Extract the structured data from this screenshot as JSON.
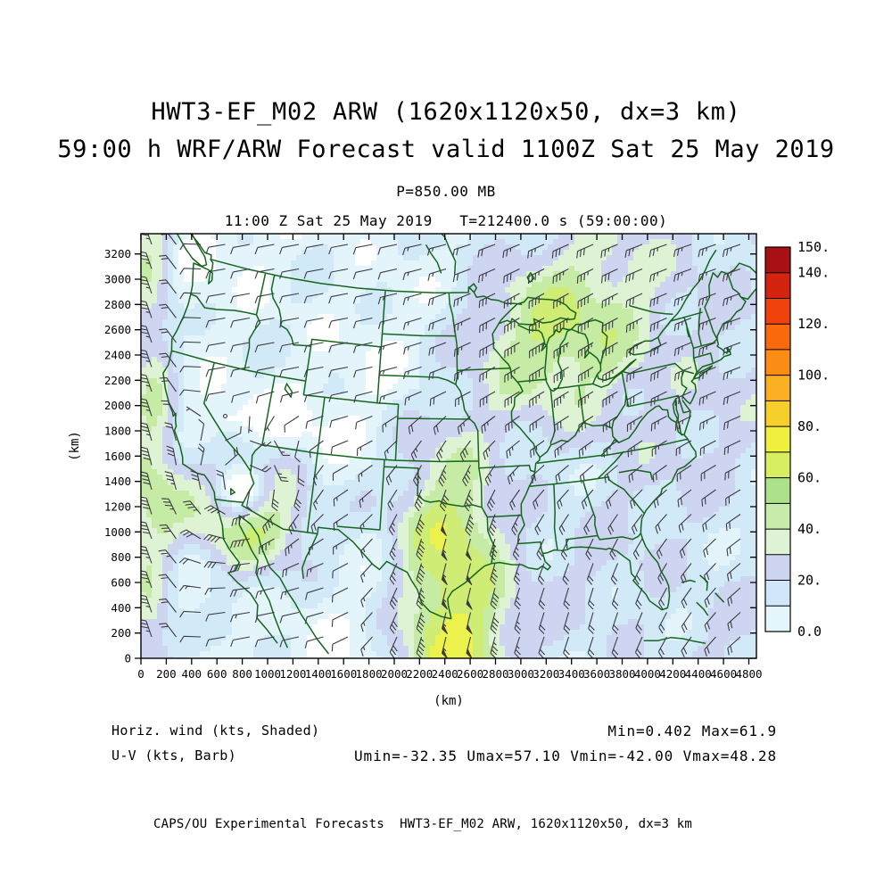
{
  "titles": {
    "line1": "HWT3-EF_M02 ARW (1620x1120x50, dx=3 km)",
    "line2": "59:00 h WRF/ARW Forecast valid 1100Z Sat 25 May 2019",
    "pressure": "P=850.00 MB",
    "valid": "11:00 Z Sat 25 May 2019   T=212400.0 s (59:00:00)"
  },
  "axes": {
    "x_label": "(km)",
    "y_label": "(km)",
    "x_ticks": [
      0,
      200,
      400,
      600,
      800,
      1000,
      1200,
      1400,
      1600,
      1800,
      2000,
      2200,
      2400,
      2600,
      2800,
      3000,
      3200,
      3400,
      3600,
      3800,
      4000,
      4200,
      4400,
      4600,
      4800
    ],
    "y_ticks": [
      0,
      200,
      400,
      600,
      800,
      1000,
      1200,
      1400,
      1600,
      1800,
      2000,
      2200,
      2400,
      2600,
      2800,
      3000,
      3200
    ]
  },
  "colorbar": {
    "min": 0,
    "max": 150,
    "colors": [
      "#e4f5fb",
      "#cfe7f8",
      "#ccd4f0",
      "#def3d3",
      "#c8ecac",
      "#aee28a",
      "#d7ee62",
      "#f0ee3f",
      "#f7cf2d",
      "#fbb024",
      "#fb8d15",
      "#f96a0c",
      "#ef420d",
      "#d42410",
      "#a81014"
    ],
    "tick_values": [
      0,
      20,
      40,
      60,
      80,
      100,
      120,
      140,
      150
    ],
    "tick_labels": [
      "0.0",
      "20.",
      "40.",
      "60.",
      "80.",
      "100.",
      "120.",
      "140.",
      "150."
    ]
  },
  "legend": {
    "shaded": "Horiz. wind (kts, Shaded)",
    "barb": "U-V (kts, Barb)",
    "minmax": "Min=0.402 Max=61.9",
    "uv_stats": "Umin=-32.35 Umax=57.10 Vmin=-42.00 Vmax=48.28"
  },
  "footer": "CAPS/OU Experimental Forecasts  HWT3-EF_M02 ARW, 1620x1120x50, dx=3 km",
  "chart_data": {
    "type": "heatmap",
    "title": "HWT3-EF_M02 ARW 59:00 h WRF/ARW Forecast valid 1100Z Sat 25 May 2019",
    "field": "Horizontal wind speed (kts, shaded) with U-V wind barbs (kts) at P=850.00 MB",
    "valid_time": "11:00 Z Sat 25 May 2019",
    "model_time_s": 212400.0,
    "forecast_hour": "59:00:00",
    "grid": "1620x1120x50",
    "dx_km": 3,
    "x_range_km": [
      0,
      4860
    ],
    "y_range_km": [
      0,
      3360
    ],
    "stats": {
      "min": 0.402,
      "max": 61.9,
      "umin": -32.35,
      "umax": 57.1,
      "vmin": -42.0,
      "vmax": 48.28
    },
    "shade_levels": [
      0,
      10,
      20,
      30,
      40,
      50,
      60,
      70,
      80,
      90,
      100,
      110,
      120,
      130,
      140,
      150
    ],
    "legend_position": "right"
  }
}
